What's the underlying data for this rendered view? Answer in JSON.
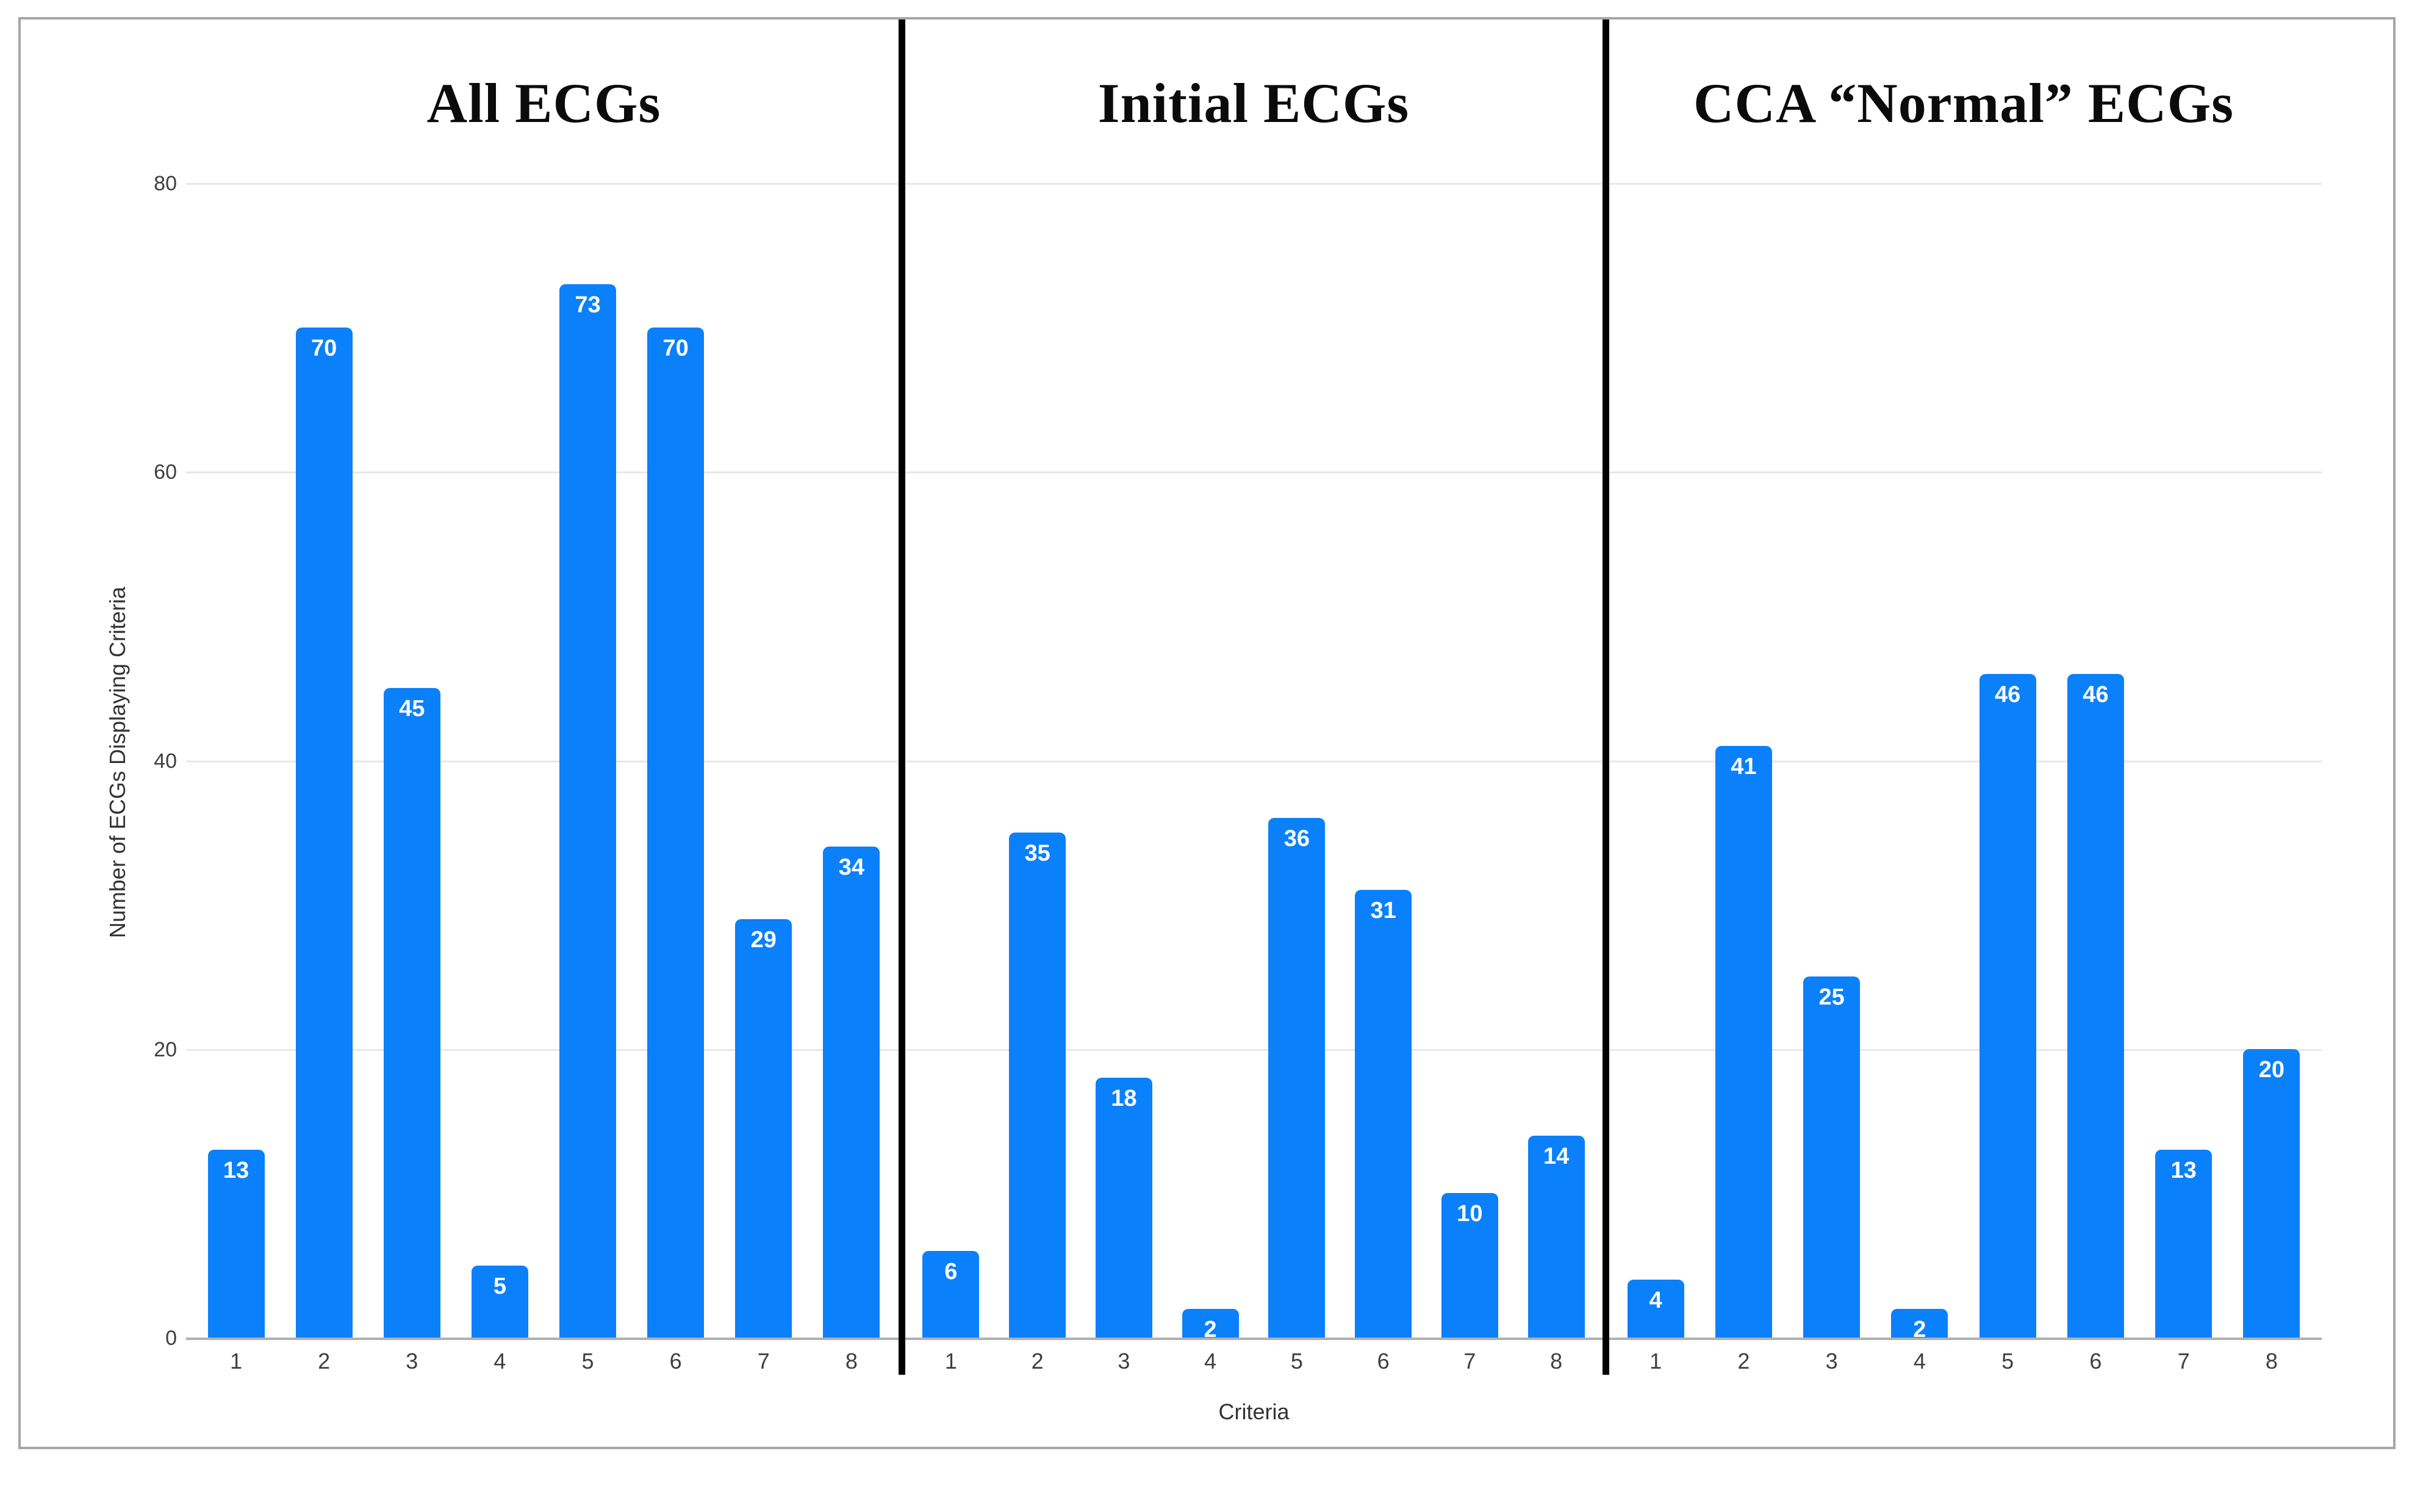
{
  "figure": {
    "y_axis": {
      "title": "Number of ECGs Displaying Criteria",
      "ticks": [
        0,
        20,
        40,
        60,
        80
      ],
      "max": 80
    },
    "x_axis": {
      "title": "Criteria",
      "categories": [
        "1",
        "2",
        "3",
        "4",
        "5",
        "6",
        "7",
        "8"
      ]
    },
    "bar_color": "#0b80fb",
    "panels": [
      {
        "title": "All ECGs",
        "values": [
          13,
          70,
          45,
          5,
          73,
          70,
          29,
          34
        ]
      },
      {
        "title": "Initial ECGs",
        "values": [
          6,
          35,
          18,
          2,
          36,
          31,
          10,
          14
        ]
      },
      {
        "title": "CCA “Normal” ECGs",
        "values": [
          4,
          41,
          25,
          2,
          46,
          46,
          13,
          20
        ]
      }
    ]
  },
  "chart_data": {
    "type": "bar",
    "categories": [
      "1",
      "2",
      "3",
      "4",
      "5",
      "6",
      "7",
      "8"
    ],
    "series": [
      {
        "name": "All ECGs",
        "values": [
          13,
          70,
          45,
          5,
          73,
          70,
          29,
          34
        ]
      },
      {
        "name": "Initial ECGs",
        "values": [
          6,
          35,
          18,
          2,
          36,
          31,
          10,
          14
        ]
      },
      {
        "name": "CCA “Normal” ECGs",
        "values": [
          4,
          41,
          25,
          2,
          46,
          46,
          13,
          20
        ]
      }
    ],
    "title": "",
    "xlabel": "Criteria",
    "ylabel": "Number of ECGs Displaying Criteria",
    "ylim": [
      0,
      80
    ],
    "grid": true,
    "bar_color": "#0b80fb",
    "data_labels": "white, inside top of each bar",
    "layout": "three faceted panels sharing one y-axis, separated by vertical black divider lines, panel titles in bold serif above each facet"
  }
}
